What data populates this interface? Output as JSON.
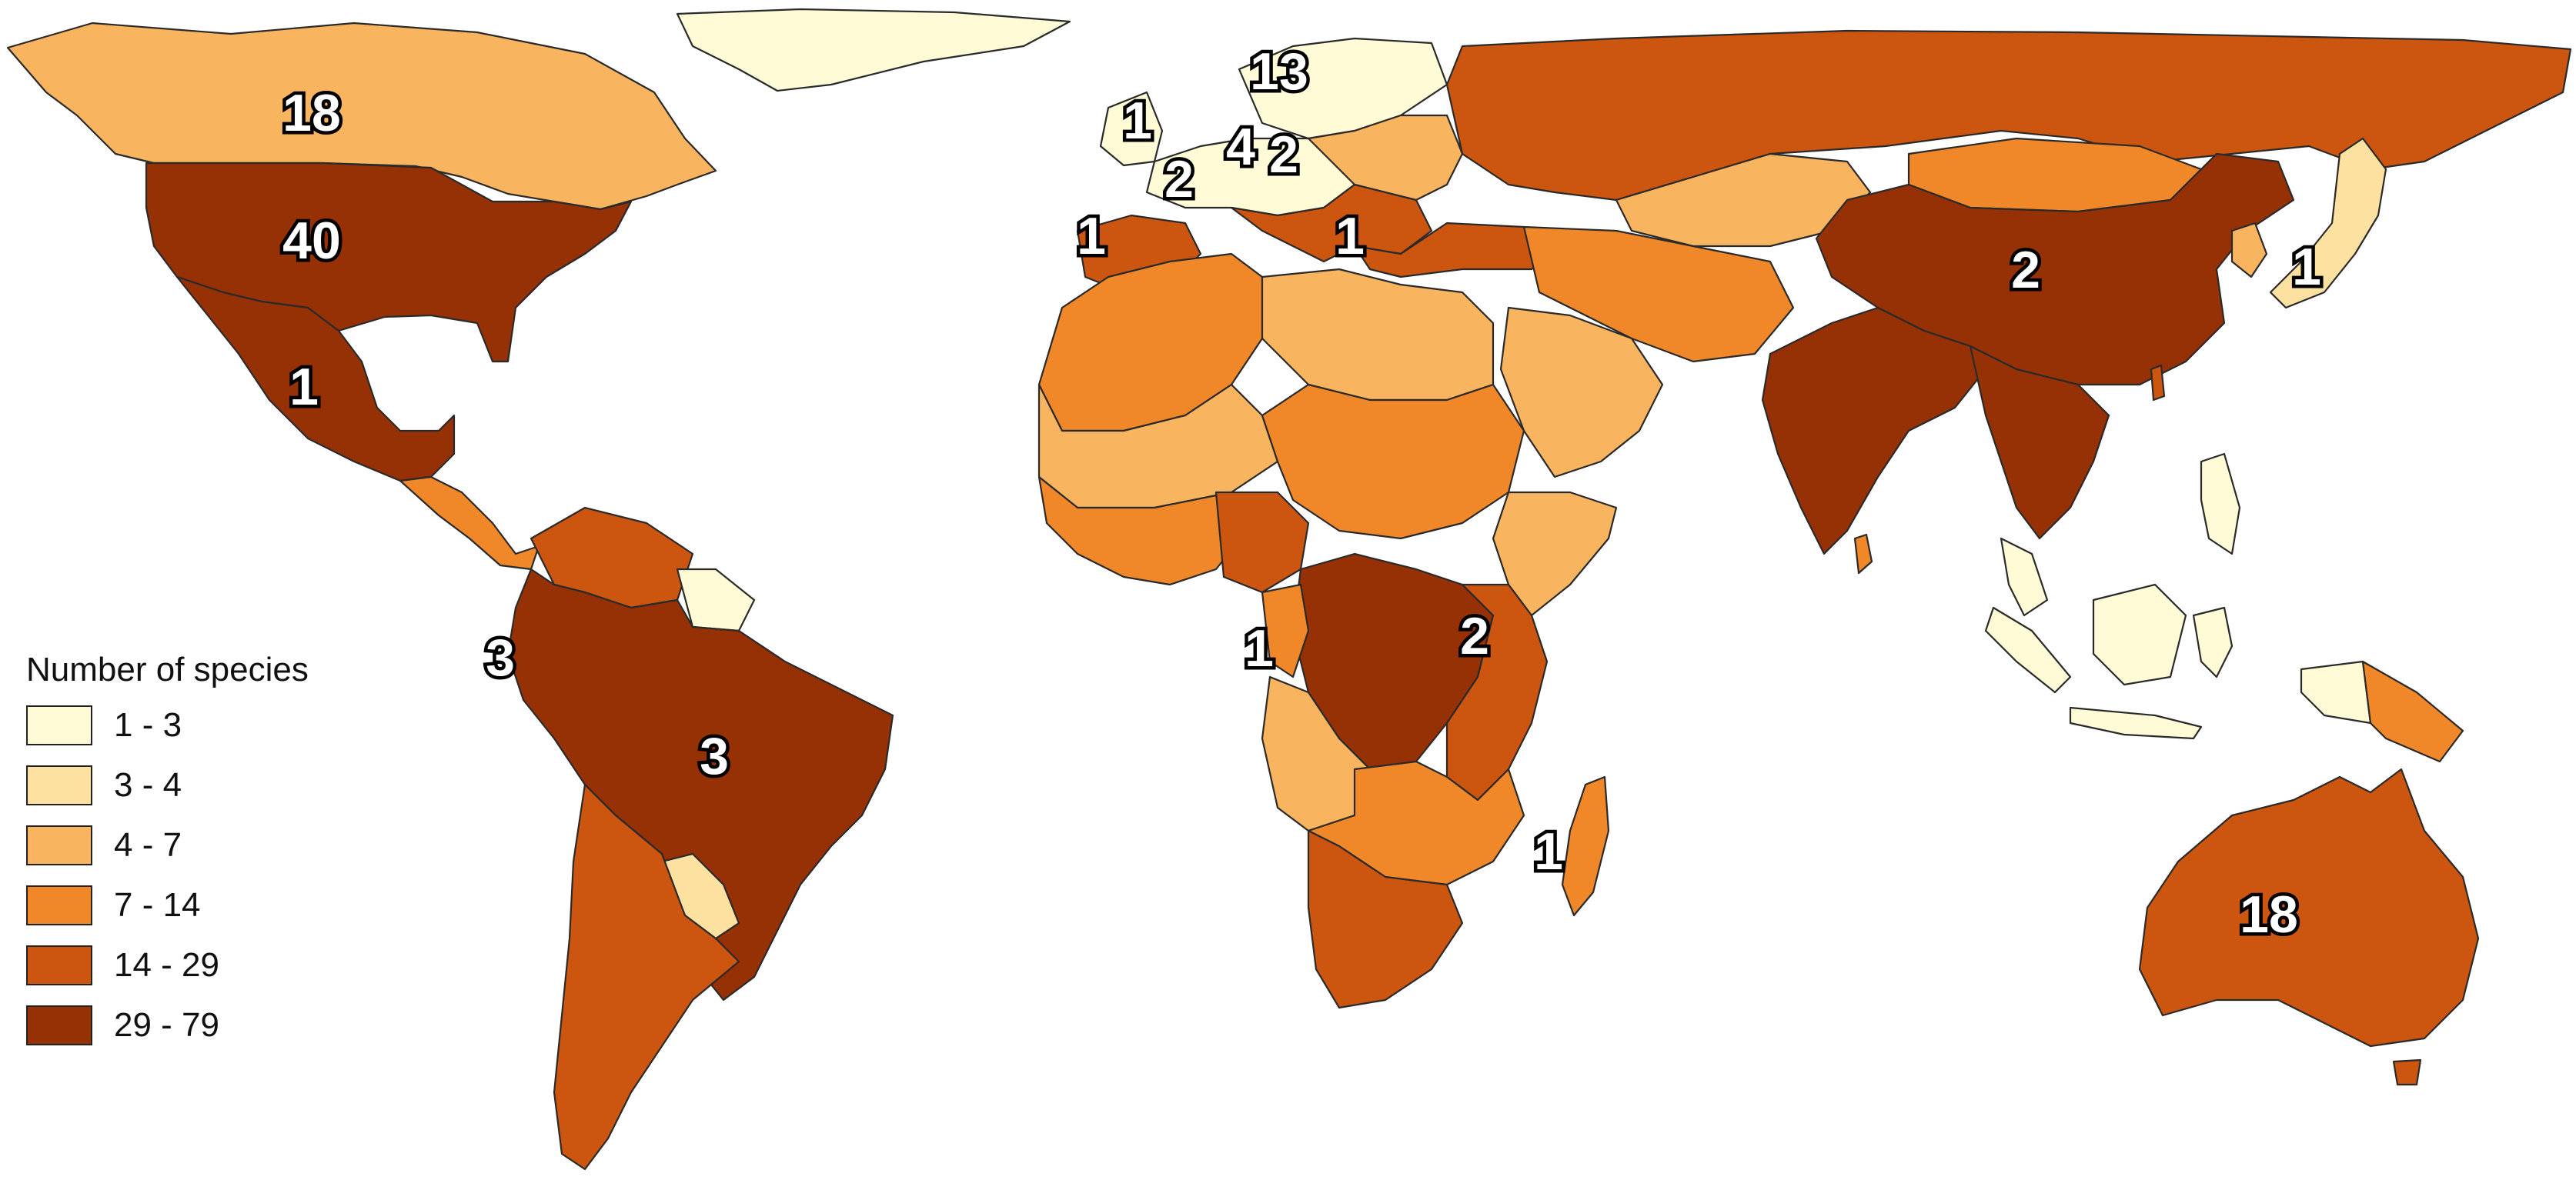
{
  "legend": {
    "title": "Number of species",
    "classes": [
      {
        "label": "1 - 3",
        "color": "#fffbd6"
      },
      {
        "label": "3 - 4",
        "color": "#fde1a0"
      },
      {
        "label": "4 - 7",
        "color": "#f9b45f"
      },
      {
        "label": "7 - 14",
        "color": "#f0882a"
      },
      {
        "label": "14 - 29",
        "color": "#cc5510"
      },
      {
        "label": "29 - 79",
        "color": "#963005"
      }
    ]
  },
  "region_counts": [
    {
      "region": "Canada",
      "value": "18"
    },
    {
      "region": "United States",
      "value": "40"
    },
    {
      "region": "Mexico",
      "value": "1"
    },
    {
      "region": "Ecuador",
      "value": "3"
    },
    {
      "region": "Brazil",
      "value": "3"
    },
    {
      "region": "Scandinavia",
      "value": "13"
    },
    {
      "region": "United Kingdom",
      "value": "1"
    },
    {
      "region": "France",
      "value": "2"
    },
    {
      "region": "Germany",
      "value": "4"
    },
    {
      "region": "Poland",
      "value": "2"
    },
    {
      "region": "Spain",
      "value": "1"
    },
    {
      "region": "Greece",
      "value": "1"
    },
    {
      "region": "China",
      "value": "2"
    },
    {
      "region": "Japan",
      "value": "1"
    },
    {
      "region": "Gabon",
      "value": "1"
    },
    {
      "region": "Tanzania",
      "value": "2"
    },
    {
      "region": "Madagascar",
      "value": "1"
    },
    {
      "region": "Australia",
      "value": "18"
    }
  ]
}
